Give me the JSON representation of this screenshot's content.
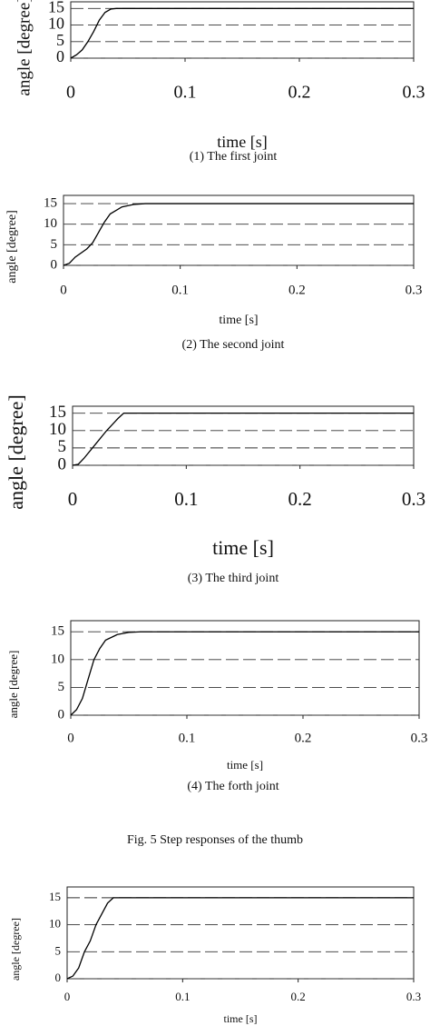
{
  "figure_caption": "Fig. 5 Step responses of the thumb",
  "chart_data": [
    {
      "type": "line",
      "y_label": "angle [degree]",
      "x_label": "time [s]",
      "caption": "(1) The first joint",
      "xlim": [
        0,
        0.3
      ],
      "xticks": [
        0,
        0.1,
        0.2,
        0.3
      ],
      "ylim": [
        0,
        17
      ],
      "yticks": [
        0,
        5,
        10,
        15
      ],
      "grid": true,
      "series": [
        {
          "color": "#000000",
          "x": [
            0,
            0.005,
            0.01,
            0.015,
            0.02,
            0.025,
            0.03,
            0.035,
            0.04,
            0.3
          ],
          "values": [
            0,
            1,
            2.5,
            5,
            8,
            11.5,
            13.8,
            14.8,
            15,
            15
          ]
        }
      ]
    },
    {
      "type": "line",
      "y_label": "angle [degree]",
      "x_label": "time [s]",
      "caption": "(2) The second joint",
      "xlim": [
        0,
        0.3
      ],
      "xticks": [
        0,
        0.1,
        0.2,
        0.3
      ],
      "ylim": [
        0,
        17
      ],
      "yticks": [
        0,
        5,
        10,
        15
      ],
      "grid": true,
      "series": [
        {
          "color": "#000000",
          "x": [
            0,
            0.005,
            0.01,
            0.02,
            0.025,
            0.03,
            0.035,
            0.04,
            0.05,
            0.06,
            0.07,
            0.3
          ],
          "values": [
            0,
            0.5,
            2,
            4,
            5.5,
            8,
            10.5,
            12.5,
            14.2,
            14.8,
            15,
            15
          ]
        }
      ]
    },
    {
      "type": "line",
      "y_label": "angle [degree]",
      "x_label": "time [s]",
      "caption": "(3) The third joint",
      "xlim": [
        0,
        0.3
      ],
      "xticks": [
        0,
        0.1,
        0.2,
        0.3
      ],
      "ylim": [
        0,
        17
      ],
      "yticks": [
        0,
        5,
        10,
        15
      ],
      "grid": true,
      "series": [
        {
          "color": "#000000",
          "x": [
            0,
            0.005,
            0.01,
            0.02,
            0.03,
            0.04,
            0.045,
            0.3
          ],
          "values": [
            0,
            0.3,
            2,
            6,
            10,
            13.5,
            15,
            15
          ]
        }
      ]
    },
    {
      "type": "line",
      "y_label": "angle [degree]",
      "x_label": "time [s]",
      "caption": "(4) The forth joint",
      "xlim": [
        0,
        0.3
      ],
      "xticks": [
        0,
        0.1,
        0.2,
        0.3
      ],
      "ylim": [
        0,
        17
      ],
      "yticks": [
        0,
        5,
        10,
        15
      ],
      "grid": true,
      "series": [
        {
          "color": "#000000",
          "x": [
            0,
            0.005,
            0.01,
            0.015,
            0.02,
            0.025,
            0.03,
            0.04,
            0.05,
            0.06,
            0.3
          ],
          "values": [
            0,
            1,
            3,
            6.5,
            10,
            12,
            13.5,
            14.5,
            14.9,
            15,
            15
          ]
        }
      ]
    },
    {
      "type": "line",
      "y_label": "angle [degree]",
      "x_label": "time [s]",
      "xlim": [
        0,
        0.3
      ],
      "xticks": [
        0,
        0.1,
        0.2,
        0.3
      ],
      "ylim": [
        0,
        17
      ],
      "yticks": [
        0,
        5,
        10,
        15
      ],
      "grid": true,
      "series": [
        {
          "color": "#000000",
          "x": [
            0,
            0.005,
            0.01,
            0.015,
            0.02,
            0.025,
            0.03,
            0.035,
            0.04,
            0.3
          ],
          "values": [
            0,
            0.5,
            2,
            5,
            7,
            10,
            12,
            14,
            15,
            15
          ]
        }
      ]
    }
  ]
}
